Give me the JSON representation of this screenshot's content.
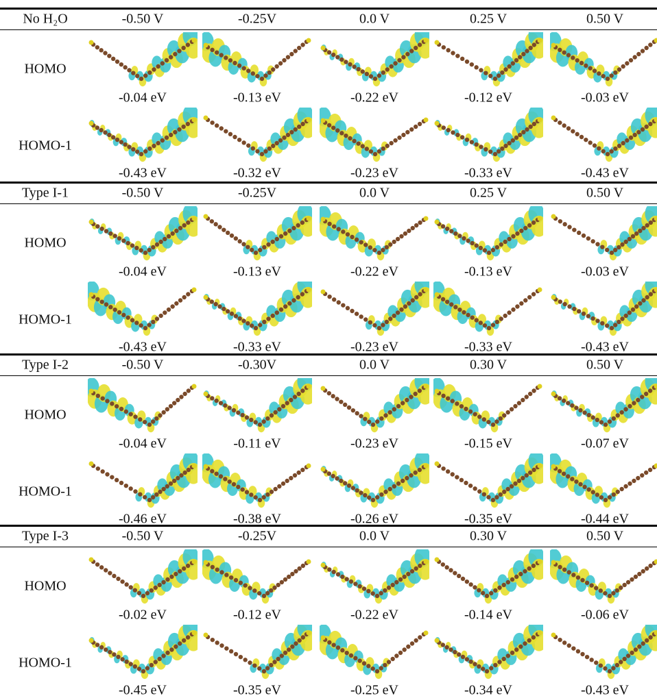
{
  "sections": [
    {
      "label": "No H₂O",
      "voltages": [
        "-0.50 V",
        "-0.25V",
        "0.0 V",
        "0.25 V",
        "0.50 V"
      ],
      "rows": [
        {
          "label": "HOMO",
          "energies": [
            "-0.04 eV",
            "-0.13 eV",
            "-0.22 eV",
            "-0.12 eV",
            "-0.03 eV"
          ]
        },
        {
          "label": "HOMO-1",
          "energies": [
            "-0.43 eV",
            "-0.32 eV",
            "-0.23 eV",
            "-0.33 eV",
            "-0.43 eV"
          ]
        }
      ]
    },
    {
      "label": "Type I-1",
      "voltages": [
        "-0.50 V",
        "-0.25V",
        "0.0 V",
        "0.25 V",
        "0.50 V"
      ],
      "rows": [
        {
          "label": "HOMO",
          "energies": [
            "-0.04 eV",
            "-0.13 eV",
            "-0.22 eV",
            "-0.13 eV",
            "-0.03 eV"
          ]
        },
        {
          "label": "HOMO-1",
          "energies": [
            "-0.43 eV",
            "-0.33 eV",
            "-0.23 eV",
            "-0.33 eV",
            "-0.43 eV"
          ]
        }
      ]
    },
    {
      "label": "Type I-2",
      "voltages": [
        "-0.50 V",
        "-0.30V",
        "0.0 V",
        "0.30 V",
        "0.50 V"
      ],
      "rows": [
        {
          "label": "HOMO",
          "energies": [
            "-0.04 eV",
            "-0.11 eV",
            "-0.23 eV",
            "-0.15 eV",
            "-0.07 eV"
          ]
        },
        {
          "label": "HOMO-1",
          "energies": [
            "-0.46 eV",
            "-0.38 eV",
            "-0.26 eV",
            "-0.35 eV",
            "-0.44 eV"
          ]
        }
      ]
    },
    {
      "label": "Type I-3",
      "voltages": [
        "-0.50 V",
        "-0.25V",
        "0.0 V",
        "0.30 V",
        "0.50 V"
      ],
      "rows": [
        {
          "label": "HOMO",
          "energies": [
            "-0.02 eV",
            "-0.12 eV",
            "-0.22 eV",
            "-0.14 eV",
            "-0.06 eV"
          ]
        },
        {
          "label": "HOMO-1",
          "energies": [
            "-0.45 eV",
            "-0.35 eV",
            "-0.25 eV",
            "-0.34 eV",
            "-0.43 eV"
          ]
        }
      ]
    }
  ]
}
